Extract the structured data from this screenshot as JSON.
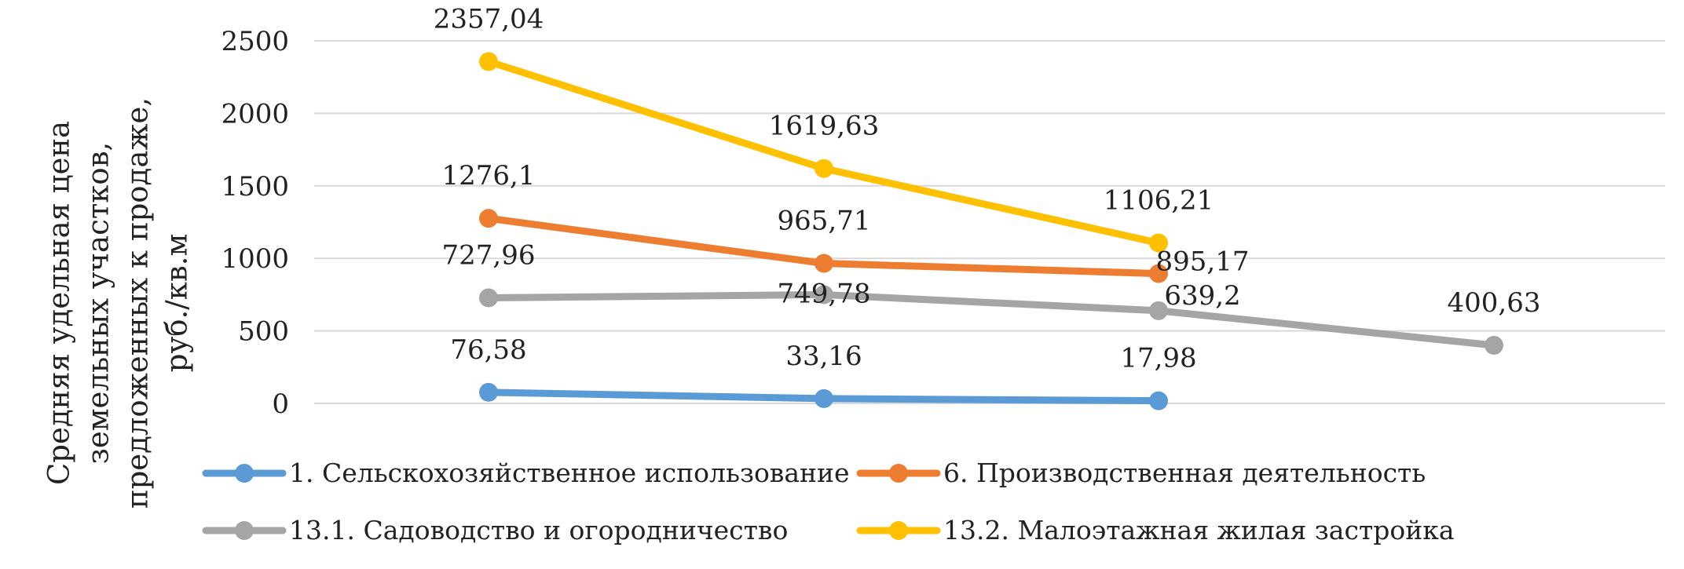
{
  "chart_data": {
    "type": "line",
    "title": "",
    "xlabel": "",
    "ylabel_lines": [
      "Средняя удельная цена",
      "земельных участков,",
      "предложенных к продаже,",
      "руб./кв.м"
    ],
    "categories": [
      "",
      "",
      "",
      ""
    ],
    "ylim": [
      0,
      2500
    ],
    "yticks": [
      0,
      500,
      1000,
      1500,
      2000,
      2500
    ],
    "grid": true,
    "legend_position": "bottom",
    "series": [
      {
        "name": "1. Сельскохозяйственное использование",
        "color": "#5b9bd5",
        "values": [
          76.58,
          33.16,
          17.98,
          null
        ],
        "labels": [
          "76,58",
          "33,16",
          "17,98",
          ""
        ]
      },
      {
        "name": "6. Производственная деятельность",
        "color": "#ed7d31",
        "values": [
          1276.1,
          965.71,
          895.17,
          null
        ],
        "labels": [
          "1276,1",
          "965,71",
          "895,17",
          ""
        ]
      },
      {
        "name": "13.1. Садоводство и огородничество",
        "color": "#a5a5a5",
        "values": [
          727.96,
          749.78,
          639.2,
          400.63
        ],
        "labels": [
          "727,96",
          "749,78",
          "639,2",
          "400,63"
        ]
      },
      {
        "name": "13.2. Малоэтажная жилая застройка",
        "color": "#ffc000",
        "values": [
          2357.04,
          1619.63,
          1106.21,
          null
        ],
        "labels": [
          "2357,04",
          "1619,63",
          "1106,21",
          ""
        ]
      }
    ]
  }
}
